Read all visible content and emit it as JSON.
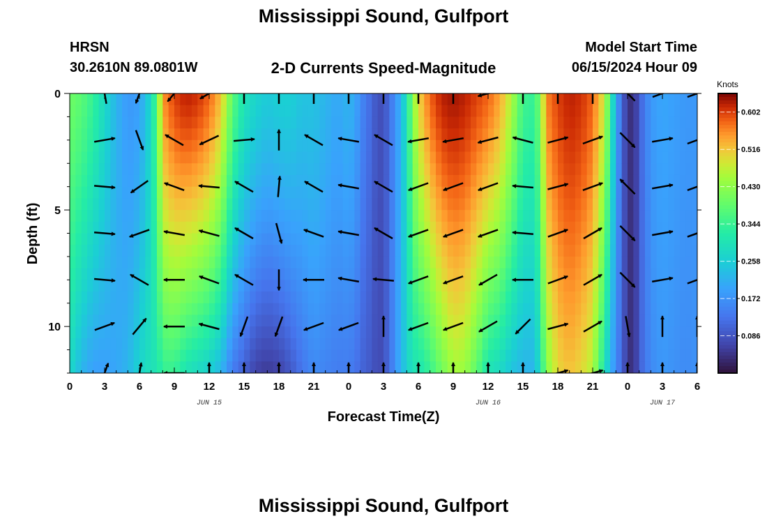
{
  "header": {
    "title": "Mississippi Sound, Gulfport",
    "station_id": "HRSN",
    "coordinates": "30.2610N  89.0801W",
    "subtitle": "2-D Currents Speed-Magnitude",
    "model_label": "Model Start Time",
    "model_time": "06/15/2024 Hour 09",
    "footer_title": "Mississippi Sound, Gulfport"
  },
  "chart_data": {
    "type": "heatmap",
    "title": "2-D Currents Speed-Magnitude",
    "xlabel": "Forecast Time(Z)",
    "ylabel": "Depth (ft)",
    "x_range_hours": [
      0,
      54
    ],
    "x_ticks": [
      {
        "hour": 0,
        "label": "0"
      },
      {
        "hour": 3,
        "label": "3"
      },
      {
        "hour": 6,
        "label": "6"
      },
      {
        "hour": 9,
        "label": "9"
      },
      {
        "hour": 12,
        "label": "12"
      },
      {
        "hour": 15,
        "label": "15"
      },
      {
        "hour": 18,
        "label": "18"
      },
      {
        "hour": 21,
        "label": "21"
      },
      {
        "hour": 24,
        "label": "0"
      },
      {
        "hour": 27,
        "label": "3"
      },
      {
        "hour": 30,
        "label": "6"
      },
      {
        "hour": 33,
        "label": "9"
      },
      {
        "hour": 36,
        "label": "12"
      },
      {
        "hour": 39,
        "label": "15"
      },
      {
        "hour": 42,
        "label": "18"
      },
      {
        "hour": 45,
        "label": "21"
      },
      {
        "hour": 48,
        "label": "0"
      },
      {
        "hour": 51,
        "label": "3"
      },
      {
        "hour": 54,
        "label": "6"
      }
    ],
    "date_labels": [
      {
        "hour": 12,
        "label": "JUN 15"
      },
      {
        "hour": 36,
        "label": "JUN 16"
      },
      {
        "hour": 51,
        "label": "JUN 17"
      }
    ],
    "y_range_ft": [
      0,
      12
    ],
    "y_ticks": [
      0,
      5,
      10
    ],
    "colorbar": {
      "label": "Knots",
      "min": 0.0,
      "max": 0.645,
      "ticks": [
        "0.086",
        "0.172",
        "0.258",
        "0.344",
        "0.430",
        "0.516",
        "0.602"
      ]
    },
    "speed_profile": {
      "hours": [
        0,
        1,
        2,
        3,
        4,
        5,
        6,
        7,
        7.5,
        8,
        9,
        10,
        11,
        12,
        13,
        13.5,
        14,
        15,
        16,
        17,
        18,
        19,
        20,
        21,
        22,
        23,
        24,
        24.6,
        25,
        26,
        26.5,
        27,
        27.5,
        28,
        28.5,
        29,
        29.5,
        30,
        31,
        32,
        33,
        34,
        35,
        36,
        37,
        38,
        39,
        40,
        40.5,
        41,
        42,
        43,
        44,
        45,
        46,
        46.5,
        47,
        47.6,
        48,
        48.6,
        49,
        50,
        51,
        52,
        53,
        54
      ],
      "surface_knots": [
        0.4,
        0.38,
        0.34,
        0.28,
        0.22,
        0.18,
        0.19,
        0.28,
        0.38,
        0.55,
        0.6,
        0.62,
        0.61,
        0.58,
        0.52,
        0.45,
        0.38,
        0.3,
        0.27,
        0.25,
        0.26,
        0.26,
        0.24,
        0.24,
        0.22,
        0.2,
        0.22,
        0.2,
        0.16,
        0.11,
        0.08,
        0.08,
        0.12,
        0.17,
        0.22,
        0.3,
        0.42,
        0.5,
        0.58,
        0.62,
        0.63,
        0.62,
        0.6,
        0.58,
        0.54,
        0.46,
        0.35,
        0.34,
        0.42,
        0.56,
        0.6,
        0.62,
        0.61,
        0.58,
        0.48,
        0.35,
        0.2,
        0.1,
        0.04,
        0.04,
        0.1,
        0.18,
        0.2,
        0.19,
        0.18,
        0.18
      ],
      "bottom_knots": [
        0.28,
        0.22,
        0.19,
        0.19,
        0.2,
        0.22,
        0.27,
        0.3,
        0.3,
        0.34,
        0.34,
        0.3,
        0.28,
        0.26,
        0.22,
        0.18,
        0.14,
        0.1,
        0.06,
        0.05,
        0.06,
        0.09,
        0.13,
        0.16,
        0.15,
        0.14,
        0.14,
        0.13,
        0.11,
        0.09,
        0.07,
        0.08,
        0.12,
        0.17,
        0.22,
        0.26,
        0.3,
        0.3,
        0.34,
        0.4,
        0.45,
        0.44,
        0.38,
        0.3,
        0.28,
        0.24,
        0.22,
        0.22,
        0.3,
        0.42,
        0.5,
        0.52,
        0.5,
        0.46,
        0.3,
        0.22,
        0.16,
        0.1,
        0.04,
        0.04,
        0.1,
        0.16,
        0.18,
        0.17,
        0.16,
        0.17
      ]
    },
    "vector_depths_ft": [
      0,
      2,
      4,
      6,
      8,
      10,
      12
    ],
    "vectors": [
      {
        "t": 3,
        "dirs": [
          350,
          80,
          95,
          95,
          95,
          70,
          20
        ]
      },
      {
        "t": 6,
        "dirs": [
          200,
          160,
          235,
          250,
          300,
          40,
          10
        ]
      },
      {
        "t": 9,
        "dirs": [
          220,
          300,
          290,
          280,
          270,
          270,
          270
        ]
      },
      {
        "t": 12,
        "dirs": [
          240,
          245,
          275,
          285,
          290,
          285,
          0
        ]
      },
      {
        "t": 15,
        "dirs": [
          0,
          85,
          300,
          300,
          300,
          200,
          0
        ]
      },
      {
        "t": 18,
        "dirs": [
          0,
          0,
          5,
          165,
          180,
          200,
          0
        ]
      },
      {
        "t": 21,
        "dirs": [
          0,
          300,
          300,
          290,
          270,
          250,
          0
        ]
      },
      {
        "t": 24,
        "dirs": [
          0,
          280,
          280,
          280,
          280,
          250,
          0
        ]
      },
      {
        "t": 27,
        "dirs": [
          0,
          300,
          300,
          300,
          275,
          0,
          0
        ]
      },
      {
        "t": 30,
        "dirs": [
          0,
          260,
          250,
          250,
          250,
          250,
          0
        ]
      },
      {
        "t": 33,
        "dirs": [
          0,
          260,
          250,
          250,
          250,
          250,
          0
        ]
      },
      {
        "t": 36,
        "dirs": [
          255,
          255,
          250,
          250,
          240,
          240,
          0
        ]
      },
      {
        "t": 39,
        "dirs": [
          0,
          285,
          275,
          275,
          270,
          225,
          0
        ]
      },
      {
        "t": 42,
        "dirs": [
          0,
          75,
          75,
          70,
          70,
          75,
          75
        ]
      },
      {
        "t": 45,
        "dirs": [
          0,
          70,
          70,
          60,
          60,
          60,
          75
        ]
      },
      {
        "t": 48,
        "dirs": [
          315,
          135,
          315,
          135,
          135,
          170,
          0
        ]
      },
      {
        "t": 51,
        "dirs": [
          70,
          80,
          80,
          80,
          80,
          0,
          0
        ]
      },
      {
        "t": 54,
        "dirs": [
          70,
          70,
          70,
          70,
          70,
          0,
          0
        ]
      }
    ]
  }
}
